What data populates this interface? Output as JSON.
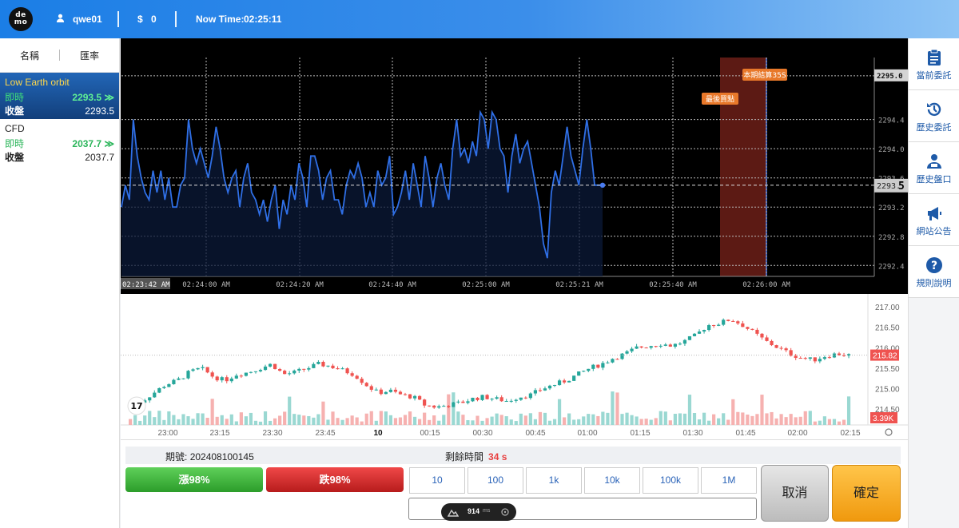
{
  "header": {
    "logo_text": "de\nmo",
    "username": "qwe01",
    "currency_symbol": "$",
    "balance": "0",
    "now_time_label": "Now Time:",
    "now_time_value": "02:25:11"
  },
  "sidebar": {
    "col_name": "名稱",
    "col_rate": "匯率",
    "products": [
      {
        "name": "Low Earth orbit",
        "live_label": "即時",
        "live_value": "2293.5",
        "close_label": "收盤",
        "close_value": "2293.5"
      },
      {
        "name": "CFD",
        "live_label": "即時",
        "live_value": "2037.7",
        "close_label": "收盤",
        "close_value": "2037.7"
      }
    ]
  },
  "right_menu": [
    {
      "label": "當前委託",
      "icon": "clipboard-icon"
    },
    {
      "label": "歷史委託",
      "icon": "history-icon"
    },
    {
      "label": "歷史盤口",
      "icon": "history-book-icon"
    },
    {
      "label": "網站公告",
      "icon": "megaphone-icon"
    },
    {
      "label": "規則說明",
      "icon": "question-icon"
    }
  ],
  "chart_data": [
    {
      "type": "line",
      "x_labels": [
        "02:23:42 AM",
        "02:24:00 AM",
        "02:24:20 AM",
        "02:24:40 AM",
        "02:25:00 AM",
        "02:25:21 AM",
        "02:25:40 AM",
        "02:26:00 AM"
      ],
      "y_ticks": [
        "2295.0",
        "2294.4",
        "2294.0",
        "2293.6",
        "2293.2",
        "2292.8",
        "2292.4"
      ],
      "current_price": "2293.5",
      "current_price_small": "2293.",
      "current_price_last_digit": "5",
      "annotation_end": "本期結算35S",
      "annotation_last_buy": "最後買點",
      "colors": {
        "line": "#2f6fe6",
        "zone": "#5c1a14",
        "background": "#000000"
      },
      "values": [
        2293.2,
        2293.5,
        2293.3,
        2294.4,
        2293.9,
        2293.6,
        2293.4,
        2293.3,
        2293.7,
        2293.4,
        2293.7,
        2293.3,
        2293.6,
        2293.2,
        2293.2,
        2293.5,
        2293.6,
        2294.4,
        2294.0,
        2293.8,
        2294.0,
        2293.8,
        2293.6,
        2293.9,
        2294.3,
        2294.0,
        2293.6,
        2293.4,
        2293.6,
        2293.7,
        2293.2,
        2293.6,
        2293.8,
        2293.4,
        2293.3,
        2293.1,
        2293.3,
        2293.0,
        2293.3,
        2293.5,
        2292.9,
        2293.3,
        2293.1,
        2293.5,
        2293.3,
        2293.8,
        2293.6,
        2293.2,
        2293.9,
        2293.9,
        2293.7,
        2293.3,
        2293.6,
        2293.7,
        2293.3,
        2293.3,
        2293.1,
        2293.5,
        2293.7,
        2293.6,
        2293.8,
        2293.6,
        2293.2,
        2293.4,
        2293.2,
        2293.7,
        2293.5,
        2293.6,
        2293.9,
        2293.1,
        2293.2,
        2293.4,
        2293.7,
        2293.3,
        2293.8,
        2293.5,
        2293.2,
        2293.9,
        2293.6,
        2293.2,
        2293.6,
        2293.8,
        2293.5,
        2293.3,
        2294.0,
        2294.4,
        2293.9,
        2294.0,
        2293.8,
        2294.1,
        2293.9,
        2294.5,
        2294.4,
        2294.0,
        2294.5,
        2294.4,
        2294.0,
        2293.9,
        2293.4,
        2293.9,
        2294.2,
        2293.8,
        2294.0,
        2294.1,
        2293.8,
        2293.5,
        2293.2,
        2292.7,
        2292.5,
        2293.4,
        2293.7,
        2293.5,
        2293.9,
        2294.3,
        2293.9,
        2293.7,
        2293.5,
        2294.0,
        2294.4,
        2294.0,
        2293.5,
        2293.5,
        2293.5
      ],
      "y_range": [
        2292.25,
        2295.25
      ]
    },
    {
      "type": "candlestick",
      "x_labels": [
        "23:00",
        "23:15",
        "23:30",
        "23:45",
        "10",
        "00:15",
        "00:30",
        "00:45",
        "01:00",
        "01:15",
        "01:30",
        "01:45",
        "02:00",
        "02:15"
      ],
      "y_ticks": [
        "217.00",
        "216.50",
        "216.00",
        "215.50",
        "215.00",
        "214.50"
      ],
      "last_price": "215.82",
      "volume_label": "3.39K",
      "close_path": [
        214.6,
        214.7,
        214.9,
        215.1,
        215.2,
        215.4,
        215.5,
        215.3,
        215.2,
        215.35,
        215.4,
        215.5,
        215.6,
        215.35,
        215.4,
        215.5,
        215.6,
        215.55,
        215.45,
        215.35,
        215.1,
        214.9,
        214.95,
        214.85,
        214.8,
        214.6,
        214.55,
        214.6,
        214.65,
        214.75,
        214.8,
        214.75,
        214.7,
        214.8,
        214.85,
        215.0,
        215.1,
        215.2,
        215.35,
        215.5,
        215.6,
        215.75,
        215.85,
        216.0,
        216.05,
        216.1,
        216.05,
        216.15,
        216.3,
        216.55,
        216.6,
        216.7,
        216.55,
        216.35,
        216.15,
        216.0,
        215.85,
        215.75,
        215.7,
        215.8,
        215.85,
        215.82
      ]
    }
  ],
  "bottom": {
    "period_label": "期號:",
    "period_value": "202408100145",
    "remain_label": "剩餘時間",
    "remain_value": "34 s",
    "rise_label": "漲98%",
    "fall_label": "跌98%",
    "amounts": [
      "10",
      "100",
      "1k",
      "10k",
      "100k",
      "1M"
    ],
    "amount_placeholder": "",
    "cancel_label": "取消",
    "confirm_label": "確定",
    "perf_value": "914",
    "perf_unit": "ms"
  }
}
